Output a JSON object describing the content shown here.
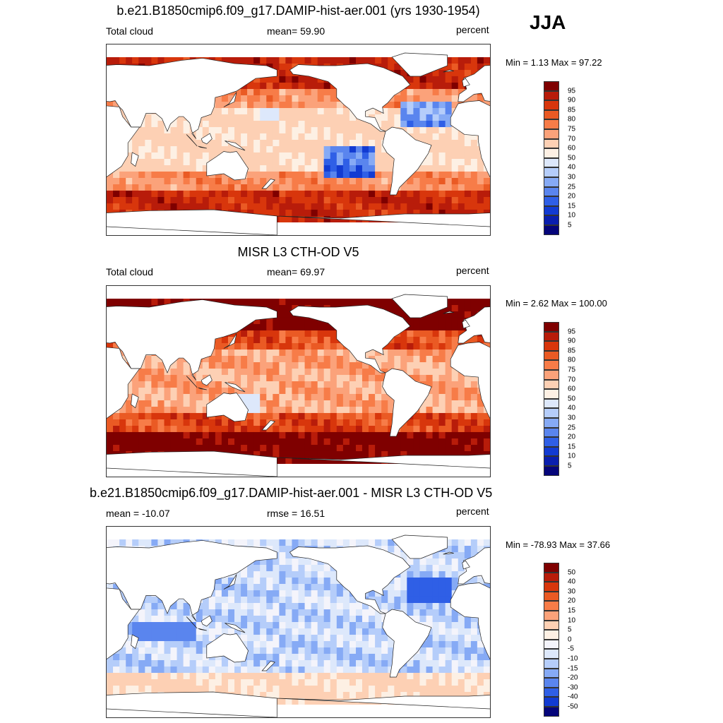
{
  "season": "JJA",
  "panels": [
    {
      "title": "b.e21.B1850cmip6.f09_g17.DAMIP-hist-aer.001 (yrs 1930-1954)",
      "left_label": "Total cloud",
      "center_label": "mean=  59.90",
      "right_label": "percent",
      "minmax": "Min =   1.13 Max =  97.22",
      "colorbar": {
        "labels": [
          "95",
          "90",
          "85",
          "80",
          "75",
          "70",
          "60",
          "50",
          "40",
          "30",
          "25",
          "20",
          "15",
          "10",
          "5"
        ],
        "colors": [
          "#7f0000",
          "#b81c0a",
          "#d8360c",
          "#ea5a24",
          "#f77c48",
          "#fba27a",
          "#fdd0b4",
          "#fdf0e4",
          "#dde8fb",
          "#b5cdfa",
          "#86aaf5",
          "#5a85ee",
          "#2f5fe6",
          "#123bd2",
          "#0a1fae",
          "#05057a"
        ]
      },
      "field": "model"
    },
    {
      "title": "MISR L3 CTH-OD V5",
      "left_label": "Total cloud",
      "center_label": "mean=  69.97",
      "right_label": "percent",
      "minmax": "Min =   2.62 Max = 100.00",
      "colorbar": {
        "labels": [
          "95",
          "90",
          "85",
          "80",
          "75",
          "70",
          "60",
          "50",
          "40",
          "30",
          "25",
          "20",
          "15",
          "10",
          "5"
        ],
        "colors": [
          "#7f0000",
          "#b81c0a",
          "#d8360c",
          "#ea5a24",
          "#f77c48",
          "#fba27a",
          "#fdd0b4",
          "#fdf0e4",
          "#dde8fb",
          "#b5cdfa",
          "#86aaf5",
          "#5a85ee",
          "#2f5fe6",
          "#123bd2",
          "#0a1fae",
          "#05057a"
        ]
      },
      "field": "obs"
    },
    {
      "title": "b.e21.B1850cmip6.f09_g17.DAMIP-hist-aer.001 - MISR L3 CTH-OD V5",
      "left_label": "mean = -10.07",
      "center_label": "rmse =  16.51",
      "right_label": "percent",
      "minmax": "Min = -78.93 Max =  37.66",
      "colorbar": {
        "labels": [
          "50",
          "40",
          "30",
          "20",
          "15",
          "10",
          "5",
          "0",
          "-5",
          "-10",
          "-15",
          "-20",
          "-30",
          "-40",
          "-50"
        ],
        "colors": [
          "#7f0000",
          "#b81c0a",
          "#d8360c",
          "#ea5a24",
          "#f77c48",
          "#fba27a",
          "#fdd0b4",
          "#fdf0e4",
          "#f4f4fb",
          "#dde8fb",
          "#b5cdfa",
          "#86aaf5",
          "#5a85ee",
          "#2f5fe6",
          "#123bd2",
          "#05057a"
        ]
      },
      "field": "diff"
    }
  ]
}
